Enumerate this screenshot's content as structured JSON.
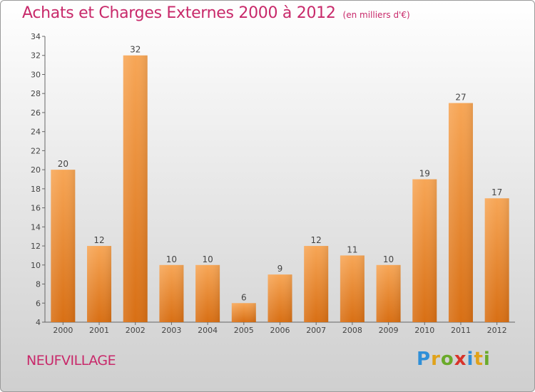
{
  "title": "Achats et Charges Externes 2000 à 2012",
  "unit_label": "(en milliers d'€)",
  "commune": "NEUFVILLAGE",
  "logo": {
    "text": "Proxiti",
    "letters": [
      {
        "ch": "P",
        "color": "#2f8fd8"
      },
      {
        "ch": "r",
        "color": "#e0a21a"
      },
      {
        "ch": "o",
        "color": "#6aaa2a"
      },
      {
        "ch": "x",
        "color": "#d8332a"
      },
      {
        "ch": "i",
        "color": "#2f8fd8"
      },
      {
        "ch": "t",
        "color": "#e0a21a"
      },
      {
        "ch": "i",
        "color": "#6aaa2a"
      }
    ]
  },
  "colors": {
    "title": "#c8296a",
    "bar_light": "#f7a656",
    "bar_dark": "#d86f14",
    "axis": "#555555"
  },
  "chart_data": {
    "type": "bar",
    "categories": [
      "2000",
      "2001",
      "2002",
      "2003",
      "2004",
      "2005",
      "2006",
      "2007",
      "2008",
      "2009",
      "2010",
      "2011",
      "2012"
    ],
    "values": [
      20,
      12,
      32,
      10,
      10,
      6,
      9,
      12,
      11,
      10,
      19,
      27,
      17
    ],
    "ylim": [
      4,
      34
    ],
    "yticks": [
      4,
      6,
      8,
      10,
      12,
      14,
      16,
      18,
      20,
      22,
      24,
      26,
      28,
      30,
      32,
      34
    ],
    "data_labels": true,
    "grid": false
  }
}
